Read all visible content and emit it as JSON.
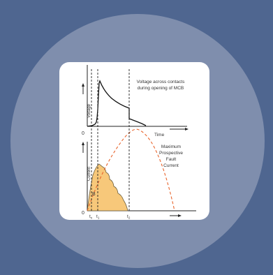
{
  "diagram": {
    "voltage_caption_line1": "Voltage across contacts",
    "voltage_caption_line2": "during opening of MCB",
    "time_label": "Time",
    "fault_caption_line1": "Maximum",
    "fault_caption_line2": "Prospective",
    "fault_caption_line3": "Fault",
    "fault_caption_line4": "Current",
    "voltage_axis_label": "Voltage",
    "current_axis_label": "Current",
    "origin_upper": "0",
    "origin_lower": "0",
    "area_letter": "B",
    "t_x": "t",
    "t_x_sub": "x",
    "t_1": "t",
    "t_1_sub": "1",
    "t_2": "t",
    "t_2_sub": "2"
  },
  "colors": {
    "background": "#4f6690",
    "circle": "#7f8ead",
    "card": "#ffffff",
    "let_through_fill": "#f7c87a",
    "prospective_curve": "#e8642c",
    "axis": "#222222"
  }
}
